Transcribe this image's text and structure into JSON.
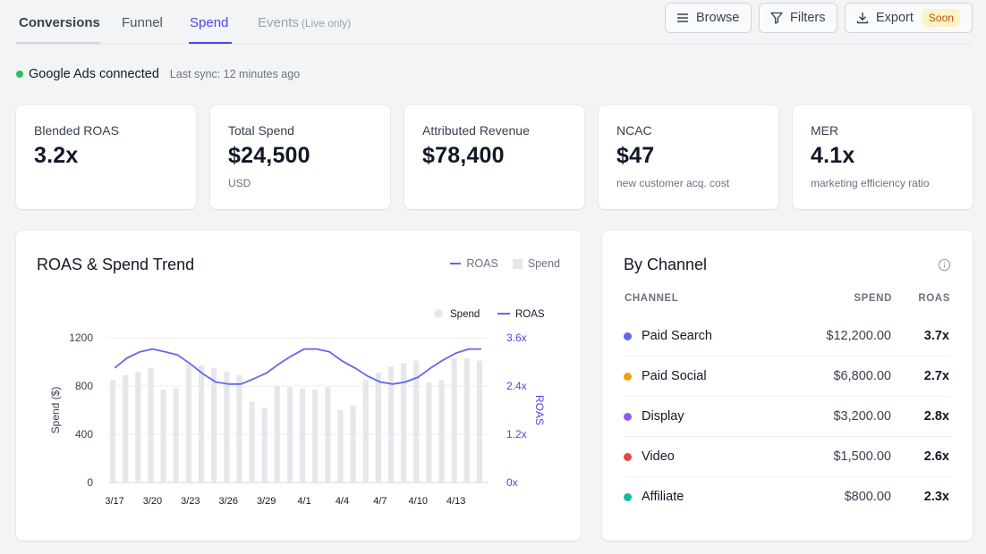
{
  "tabs": [
    {
      "label": "Conversions"
    },
    {
      "label": "Funnel"
    },
    {
      "label": "Spend"
    },
    {
      "label": "Events",
      "sub": "(Live only)"
    }
  ],
  "toolbar": {
    "browse_label": "Browse",
    "filters_label": "Filters",
    "export_label": "Export",
    "soon_badge": "Soon"
  },
  "status": {
    "connection": "Google Ads connected",
    "last_sync": "Last sync: 12 minutes ago"
  },
  "kpis": [
    {
      "label": "Blended ROAS",
      "value": "3.2x",
      "sub": ""
    },
    {
      "label": "Total Spend",
      "value": "$24,500",
      "sub": "USD"
    },
    {
      "label": "Attributed Revenue",
      "value": "$78,400",
      "sub": ""
    },
    {
      "label": "NCAC",
      "value": "$47",
      "sub": "new customer acq. cost"
    },
    {
      "label": "MER",
      "value": "4.1x",
      "sub": "marketing efficiency ratio"
    }
  ],
  "trend": {
    "title": "ROAS & Spend Trend",
    "legend_roas": "ROAS",
    "legend_spend": "Spend"
  },
  "chart_data": {
    "type": "bar",
    "legend": [
      "Spend",
      "ROAS"
    ],
    "x": [
      "3/17",
      "3/18",
      "3/19",
      "3/20",
      "3/21",
      "3/22",
      "3/23",
      "3/24",
      "3/25",
      "3/26",
      "3/27",
      "3/28",
      "3/29",
      "3/30",
      "3/31",
      "4/1",
      "4/2",
      "4/3",
      "4/4",
      "4/5",
      "4/6",
      "4/7",
      "4/8",
      "4/9",
      "4/10",
      "4/11",
      "4/12",
      "4/13",
      "4/14",
      "4/15"
    ],
    "tick_labels": [
      "3/17",
      "3/20",
      "3/23",
      "3/26",
      "3/29",
      "4/1",
      "4/4",
      "4/7",
      "4/10",
      "4/13"
    ],
    "series": [
      {
        "name": "Spend",
        "axis": "left",
        "values": [
          850,
          890,
          920,
          950,
          770,
          780,
          980,
          970,
          950,
          920,
          890,
          670,
          620,
          800,
          790,
          780,
          770,
          790,
          600,
          640,
          850,
          910,
          960,
          990,
          1010,
          830,
          850,
          1030,
          1030,
          1010
        ]
      },
      {
        "name": "ROAS",
        "axis": "right",
        "values": [
          2.85,
          3.1,
          3.25,
          3.32,
          3.25,
          3.17,
          2.95,
          2.7,
          2.5,
          2.45,
          2.45,
          2.58,
          2.72,
          2.95,
          3.15,
          3.32,
          3.32,
          3.25,
          3.02,
          2.85,
          2.65,
          2.5,
          2.45,
          2.5,
          2.62,
          2.85,
          3.05,
          3.22,
          3.32,
          3.32
        ]
      }
    ],
    "ylabel": "Spend ($)",
    "y2label": "ROAS",
    "ylim": [
      0,
      1200
    ],
    "y2lim": [
      0,
      3.6
    ],
    "yticks": [
      "0",
      "400",
      "800",
      "1200"
    ],
    "y2ticks": [
      "0x",
      "1.2x",
      "2.4x",
      "3.6x"
    ],
    "colors": {
      "spend": "#e5e7eb",
      "roas": "#6366f1"
    },
    "grid": true,
    "legend_position": "top-right"
  },
  "channel": {
    "title": "By Channel",
    "headers": {
      "channel": "CHANNEL",
      "spend": "SPEND",
      "roas": "ROAS"
    },
    "rows": [
      {
        "name": "Paid Search",
        "spend": "$12,200.00",
        "roas": "3.7x",
        "color": "#6366f1"
      },
      {
        "name": "Paid Social",
        "spend": "$6,800.00",
        "roas": "2.7x",
        "color": "#f59e0b"
      },
      {
        "name": "Display",
        "spend": "$3,200.00",
        "roas": "2.8x",
        "color": "#8b5cf6"
      },
      {
        "name": "Video",
        "spend": "$1,500.00",
        "roas": "2.6x",
        "color": "#ef4444"
      },
      {
        "name": "Affiliate",
        "spend": "$800.00",
        "roas": "2.3x",
        "color": "#14b8a6"
      }
    ]
  }
}
